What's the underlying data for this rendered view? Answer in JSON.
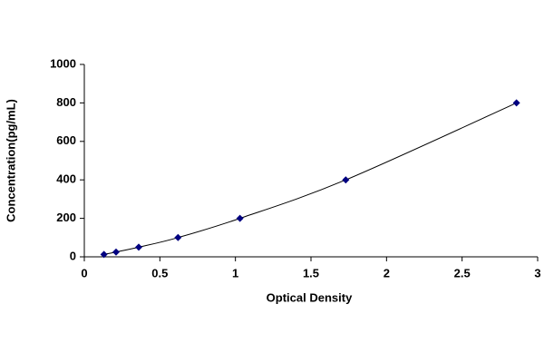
{
  "chart_data": {
    "type": "scatter",
    "x_label": "Optical Density",
    "y_label": "Concentration(pg/mL)",
    "x": [
      0.13,
      0.21,
      0.36,
      0.62,
      1.03,
      1.73,
      2.86
    ],
    "values": [
      12.5,
      25,
      50,
      100,
      200,
      400,
      800
    ],
    "color": "#000080",
    "line": true,
    "marker": "diamond",
    "xlim": [
      0,
      3
    ],
    "xticks": [
      0,
      0.5,
      1,
      1.5,
      2,
      2.5,
      3
    ],
    "ylim": [
      0,
      1000
    ],
    "yticks": [
      0,
      200,
      400,
      600,
      800,
      1000
    ],
    "grid": false
  }
}
